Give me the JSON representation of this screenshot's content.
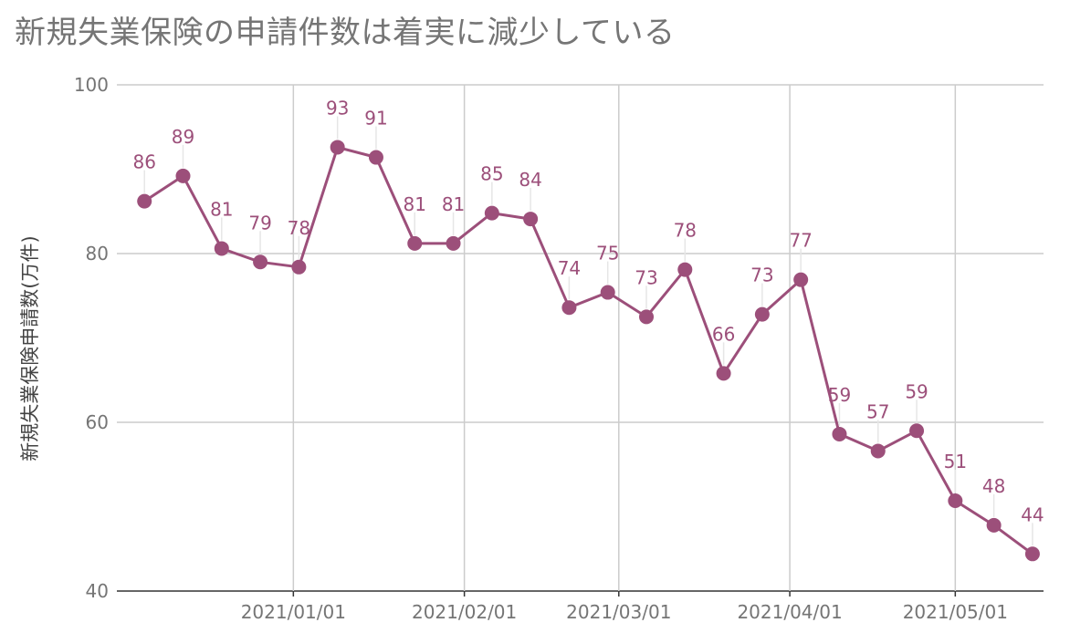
{
  "chart_data": {
    "type": "line",
    "title": "新規失業保険の申請件数は着実に減少している",
    "ylabel": "新規失業保険申請数(万件)",
    "xlabel": "",
    "ylim": [
      40,
      100
    ],
    "yticks": [
      40,
      60,
      80,
      100
    ],
    "xlim": [
      "2020-11-30",
      "2021-05-17"
    ],
    "xticks": [
      "2021/01/01",
      "2021/02/01",
      "2021/03/01",
      "2021/04/01",
      "2021/05/01"
    ],
    "grid": true,
    "legend": "none",
    "colors": {
      "series": "#9c4f7a",
      "grid": "#cccccc",
      "axis_text": "#757575"
    },
    "series": [
      {
        "x": [
          "2020-12-05",
          "2020-12-12",
          "2020-12-19",
          "2020-12-26",
          "2021-01-02",
          "2021-01-09",
          "2021-01-16",
          "2021-01-23",
          "2021-01-30",
          "2021-02-06",
          "2021-02-13",
          "2021-02-20",
          "2021-02-27",
          "2021-03-06",
          "2021-03-13",
          "2021-03-20",
          "2021-03-27",
          "2021-04-03",
          "2021-04-10",
          "2021-04-17",
          "2021-04-24",
          "2021-05-01",
          "2021-05-08",
          "2021-05-15"
        ],
        "values": [
          86.2,
          89.2,
          80.6,
          79.0,
          78.4,
          92.6,
          91.4,
          81.2,
          81.2,
          84.8,
          84.1,
          73.6,
          75.4,
          72.5,
          78.1,
          65.8,
          72.8,
          76.9,
          58.6,
          56.6,
          59.0,
          50.7,
          47.8,
          44.4
        ],
        "labels": [
          "86",
          "89",
          "81",
          "79",
          "78",
          "93",
          "91",
          "81",
          "81",
          "85",
          "84",
          "74",
          "75",
          "73",
          "78",
          "66",
          "73",
          "77",
          "59",
          "57",
          "59",
          "51",
          "48",
          "44"
        ]
      }
    ]
  }
}
